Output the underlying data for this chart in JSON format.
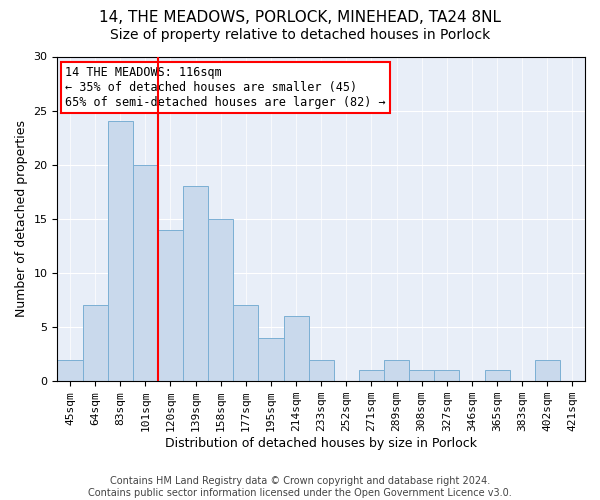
{
  "title": "14, THE MEADOWS, PORLOCK, MINEHEAD, TA24 8NL",
  "subtitle": "Size of property relative to detached houses in Porlock",
  "xlabel": "Distribution of detached houses by size in Porlock",
  "ylabel": "Number of detached properties",
  "categories": [
    "45sqm",
    "64sqm",
    "83sqm",
    "101sqm",
    "120sqm",
    "139sqm",
    "158sqm",
    "177sqm",
    "195sqm",
    "214sqm",
    "233sqm",
    "252sqm",
    "271sqm",
    "289sqm",
    "308sqm",
    "327sqm",
    "346sqm",
    "365sqm",
    "383sqm",
    "402sqm",
    "421sqm"
  ],
  "values": [
    2,
    7,
    24,
    20,
    14,
    18,
    15,
    7,
    4,
    6,
    2,
    0,
    1,
    2,
    1,
    1,
    0,
    1,
    0,
    2,
    0
  ],
  "bar_color": "#c9d9ec",
  "bar_edge_color": "#7bafd4",
  "vline_x_index": 4,
  "vline_color": "red",
  "annotation_title": "14 THE MEADOWS: 116sqm",
  "annotation_line1": "← 35% of detached houses are smaller (45)",
  "annotation_line2": "65% of semi-detached houses are larger (82) →",
  "annotation_box_color": "white",
  "annotation_box_edge_color": "red",
  "ylim": [
    0,
    30
  ],
  "yticks": [
    0,
    5,
    10,
    15,
    20,
    25,
    30
  ],
  "footer_line1": "Contains HM Land Registry data © Crown copyright and database right 2024.",
  "footer_line2": "Contains public sector information licensed under the Open Government Licence v3.0.",
  "background_color": "#e8eef8",
  "title_fontsize": 11,
  "subtitle_fontsize": 10,
  "axis_label_fontsize": 9,
  "tick_fontsize": 8,
  "annotation_fontsize": 8.5,
  "footer_fontsize": 7
}
